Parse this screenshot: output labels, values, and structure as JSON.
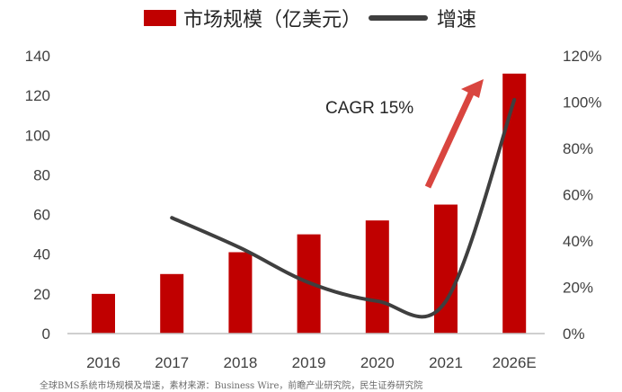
{
  "legend": {
    "bar_label": "市场规模（亿美元）",
    "line_label": "增速"
  },
  "annotation": "CAGR 15%",
  "source": "全球BMS系统市场规模及增速，素材来源：Business Wire，前瞻产业研究院，民生证券研究院",
  "colors": {
    "bar": "#c00000",
    "line": "#3f3f3f",
    "arrow": "#d9453f",
    "axis": "#bfbfbf",
    "text": "#404040"
  },
  "chart_data": {
    "type": "bar",
    "categories": [
      "2016",
      "2017",
      "2018",
      "2019",
      "2020",
      "2021",
      "2026E"
    ],
    "series": [
      {
        "name": "市场规模（亿美元）",
        "type": "bar",
        "axis": "left",
        "values": [
          20,
          30,
          41,
          50,
          57,
          65,
          131
        ]
      },
      {
        "name": "增速",
        "type": "line",
        "axis": "right",
        "values": [
          null,
          0.5,
          0.37,
          0.22,
          0.14,
          0.14,
          1.01
        ]
      }
    ],
    "y_left": {
      "range": [
        0,
        140
      ],
      "ticks": [
        "0",
        "20",
        "40",
        "60",
        "80",
        "100",
        "120",
        "140"
      ]
    },
    "y_right": {
      "range": [
        0,
        1.2
      ],
      "ticks": [
        "0%",
        "20%",
        "40%",
        "60%",
        "80%",
        "100%",
        "120%"
      ]
    },
    "grid": false,
    "legend_position": "top"
  }
}
